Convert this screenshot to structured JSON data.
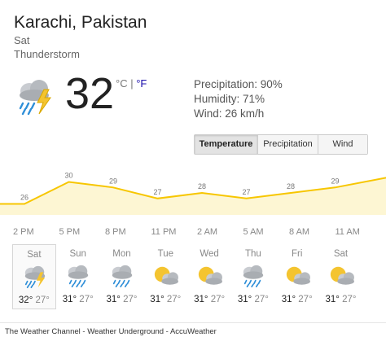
{
  "header": {
    "location": "Karachi, Pakistan",
    "day": "Sat",
    "condition": "Thunderstorm"
  },
  "current": {
    "icon": "thunderstorm-cloud-icon",
    "temp": "32",
    "unit_c": "°C",
    "unit_sep": " | ",
    "unit_f": "°F",
    "precipitation": "Precipitation: 90%",
    "humidity": "Humidity: 71%",
    "wind": "Wind: 26 km/h"
  },
  "tabs": [
    "Temperature",
    "Precipitation",
    "Wind"
  ],
  "chart_data": {
    "type": "area",
    "points": [
      {
        "t": 0,
        "v": 26,
        "label": "26"
      },
      {
        "t": 1,
        "v": 30,
        "label": "30"
      },
      {
        "t": 2,
        "v": 29,
        "label": "29"
      },
      {
        "t": 3,
        "v": 27,
        "label": "27"
      },
      {
        "t": 4,
        "v": 28,
        "label": "28"
      },
      {
        "t": 5,
        "v": 27,
        "label": "27"
      },
      {
        "t": 6,
        "v": 28,
        "label": "28"
      },
      {
        "t": 7,
        "v": 29,
        "label": "29"
      }
    ],
    "time_labels": [
      "2 PM",
      "5 PM",
      "8 PM",
      "11 PM",
      "2 AM",
      "5 AM",
      "8 AM",
      "11 AM"
    ],
    "ylim": [
      24,
      32
    ],
    "color": "#f7c600",
    "fill": "#fdf6d3"
  },
  "forecast": [
    {
      "day": "Sat",
      "hi": "32°",
      "lo": "27°",
      "icon": "thunderstorm-icon"
    },
    {
      "day": "Sun",
      "hi": "31°",
      "lo": "27°",
      "icon": "rain-cloud-icon"
    },
    {
      "day": "Mon",
      "hi": "31°",
      "lo": "27°",
      "icon": "rain-cloud-icon"
    },
    {
      "day": "Tue",
      "hi": "31°",
      "lo": "27°",
      "icon": "partly-cloudy-icon"
    },
    {
      "day": "Wed",
      "hi": "31°",
      "lo": "27°",
      "icon": "partly-cloudy-icon"
    },
    {
      "day": "Thu",
      "hi": "31°",
      "lo": "27°",
      "icon": "rain-cloud-icon"
    },
    {
      "day": "Fri",
      "hi": "31°",
      "lo": "27°",
      "icon": "partly-cloudy-icon"
    },
    {
      "day": "Sat",
      "hi": "31°",
      "lo": "27°",
      "icon": "partly-cloudy-icon"
    }
  ],
  "sources": "The Weather Channel - Weather Underground - AccuWeather"
}
